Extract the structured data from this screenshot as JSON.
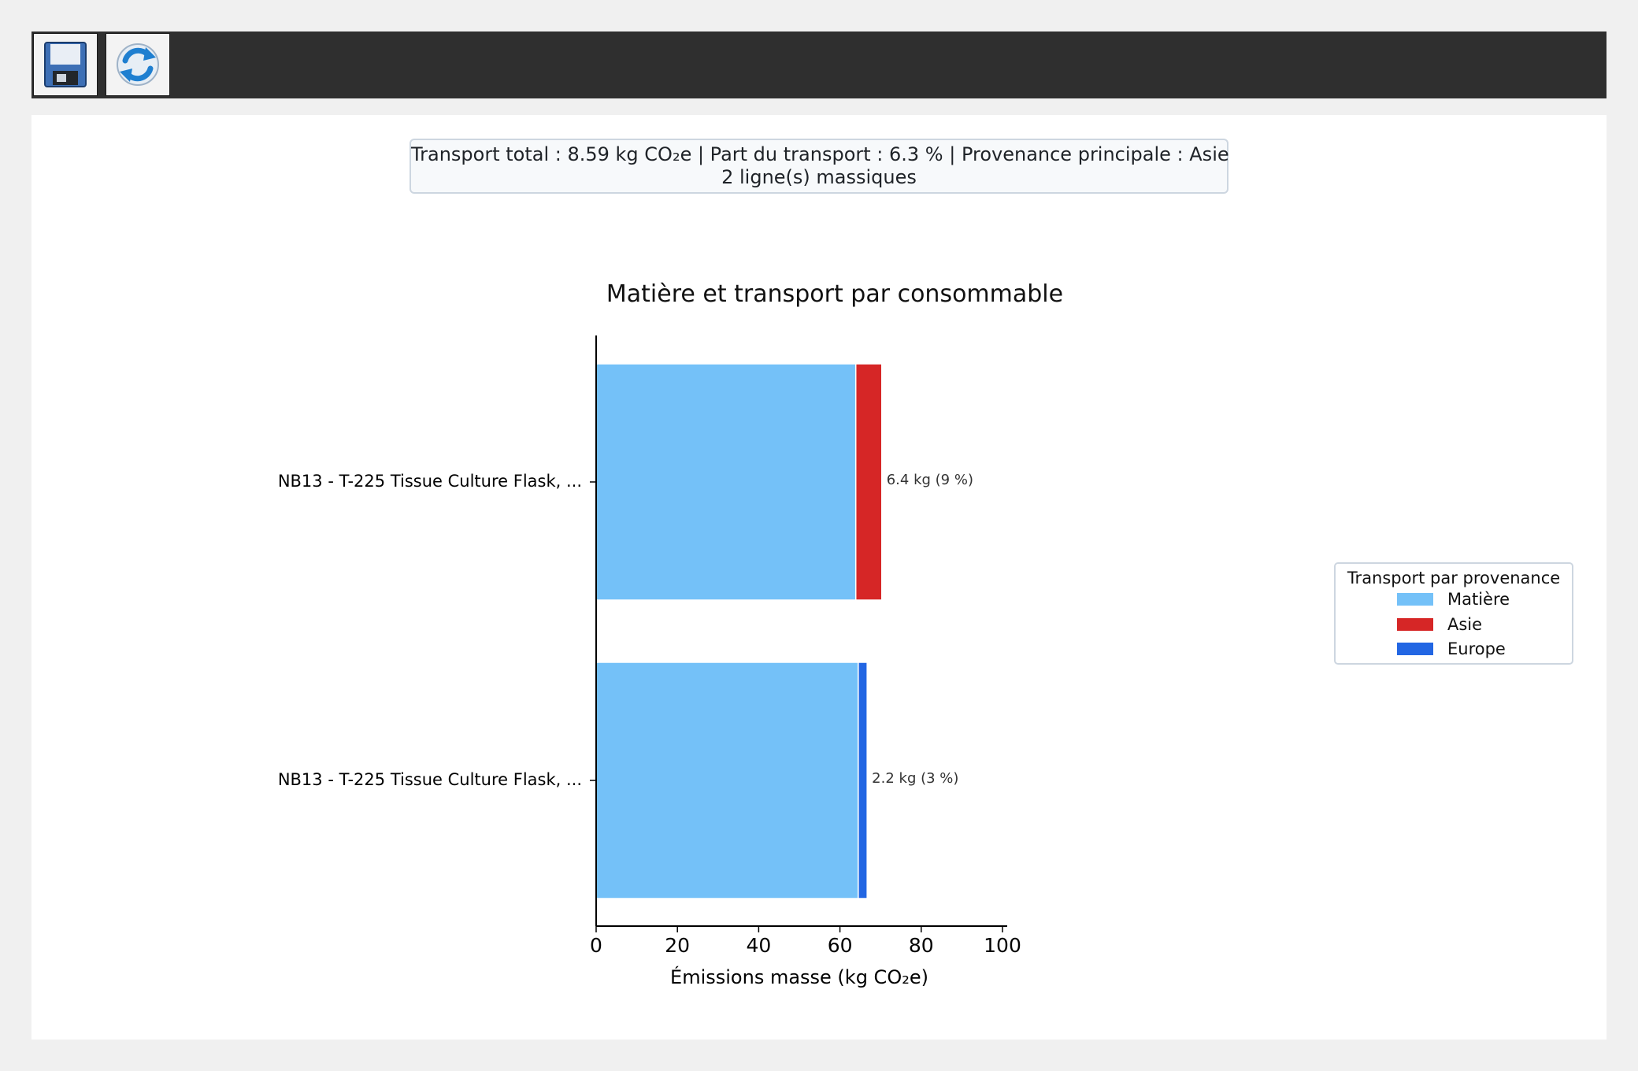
{
  "toolbar": {
    "save_icon": "save-floppy-icon",
    "refresh_icon": "refresh-icon"
  },
  "summary": {
    "line1": "Transport total : 8.59 kg CO₂e | Part du transport : 6.3 % | Provenance principale : Asie",
    "line2": "2 ligne(s) massiques"
  },
  "chart_data": {
    "type": "bar",
    "orientation": "horizontal",
    "stacked": true,
    "title": "Matière et transport par consommable",
    "xlabel": "Émissions masse (kg CO₂e)",
    "ylabel": "",
    "xlim": [
      0,
      100
    ],
    "xticks": [
      0,
      20,
      40,
      60,
      80,
      100
    ],
    "categories": [
      "NB13 - T-225 Tissue Culture Flask, ...",
      "NB13 - T-225 Tissue Culture Flask, ..."
    ],
    "series": [
      {
        "name": "Matière",
        "values": [
          63.9,
          64.5
        ],
        "color": "#74c1f8"
      },
      {
        "name": "Asie",
        "values": [
          6.4,
          0
        ],
        "color": "#d62626"
      },
      {
        "name": "Europe",
        "values": [
          0,
          2.2
        ],
        "color": "#2266e3"
      }
    ],
    "data_labels": [
      "6.4 kg (9 %)",
      "2.2 kg (3 %)"
    ],
    "legend": {
      "title": "Transport par provenance",
      "placement": "right"
    },
    "grid": false
  }
}
